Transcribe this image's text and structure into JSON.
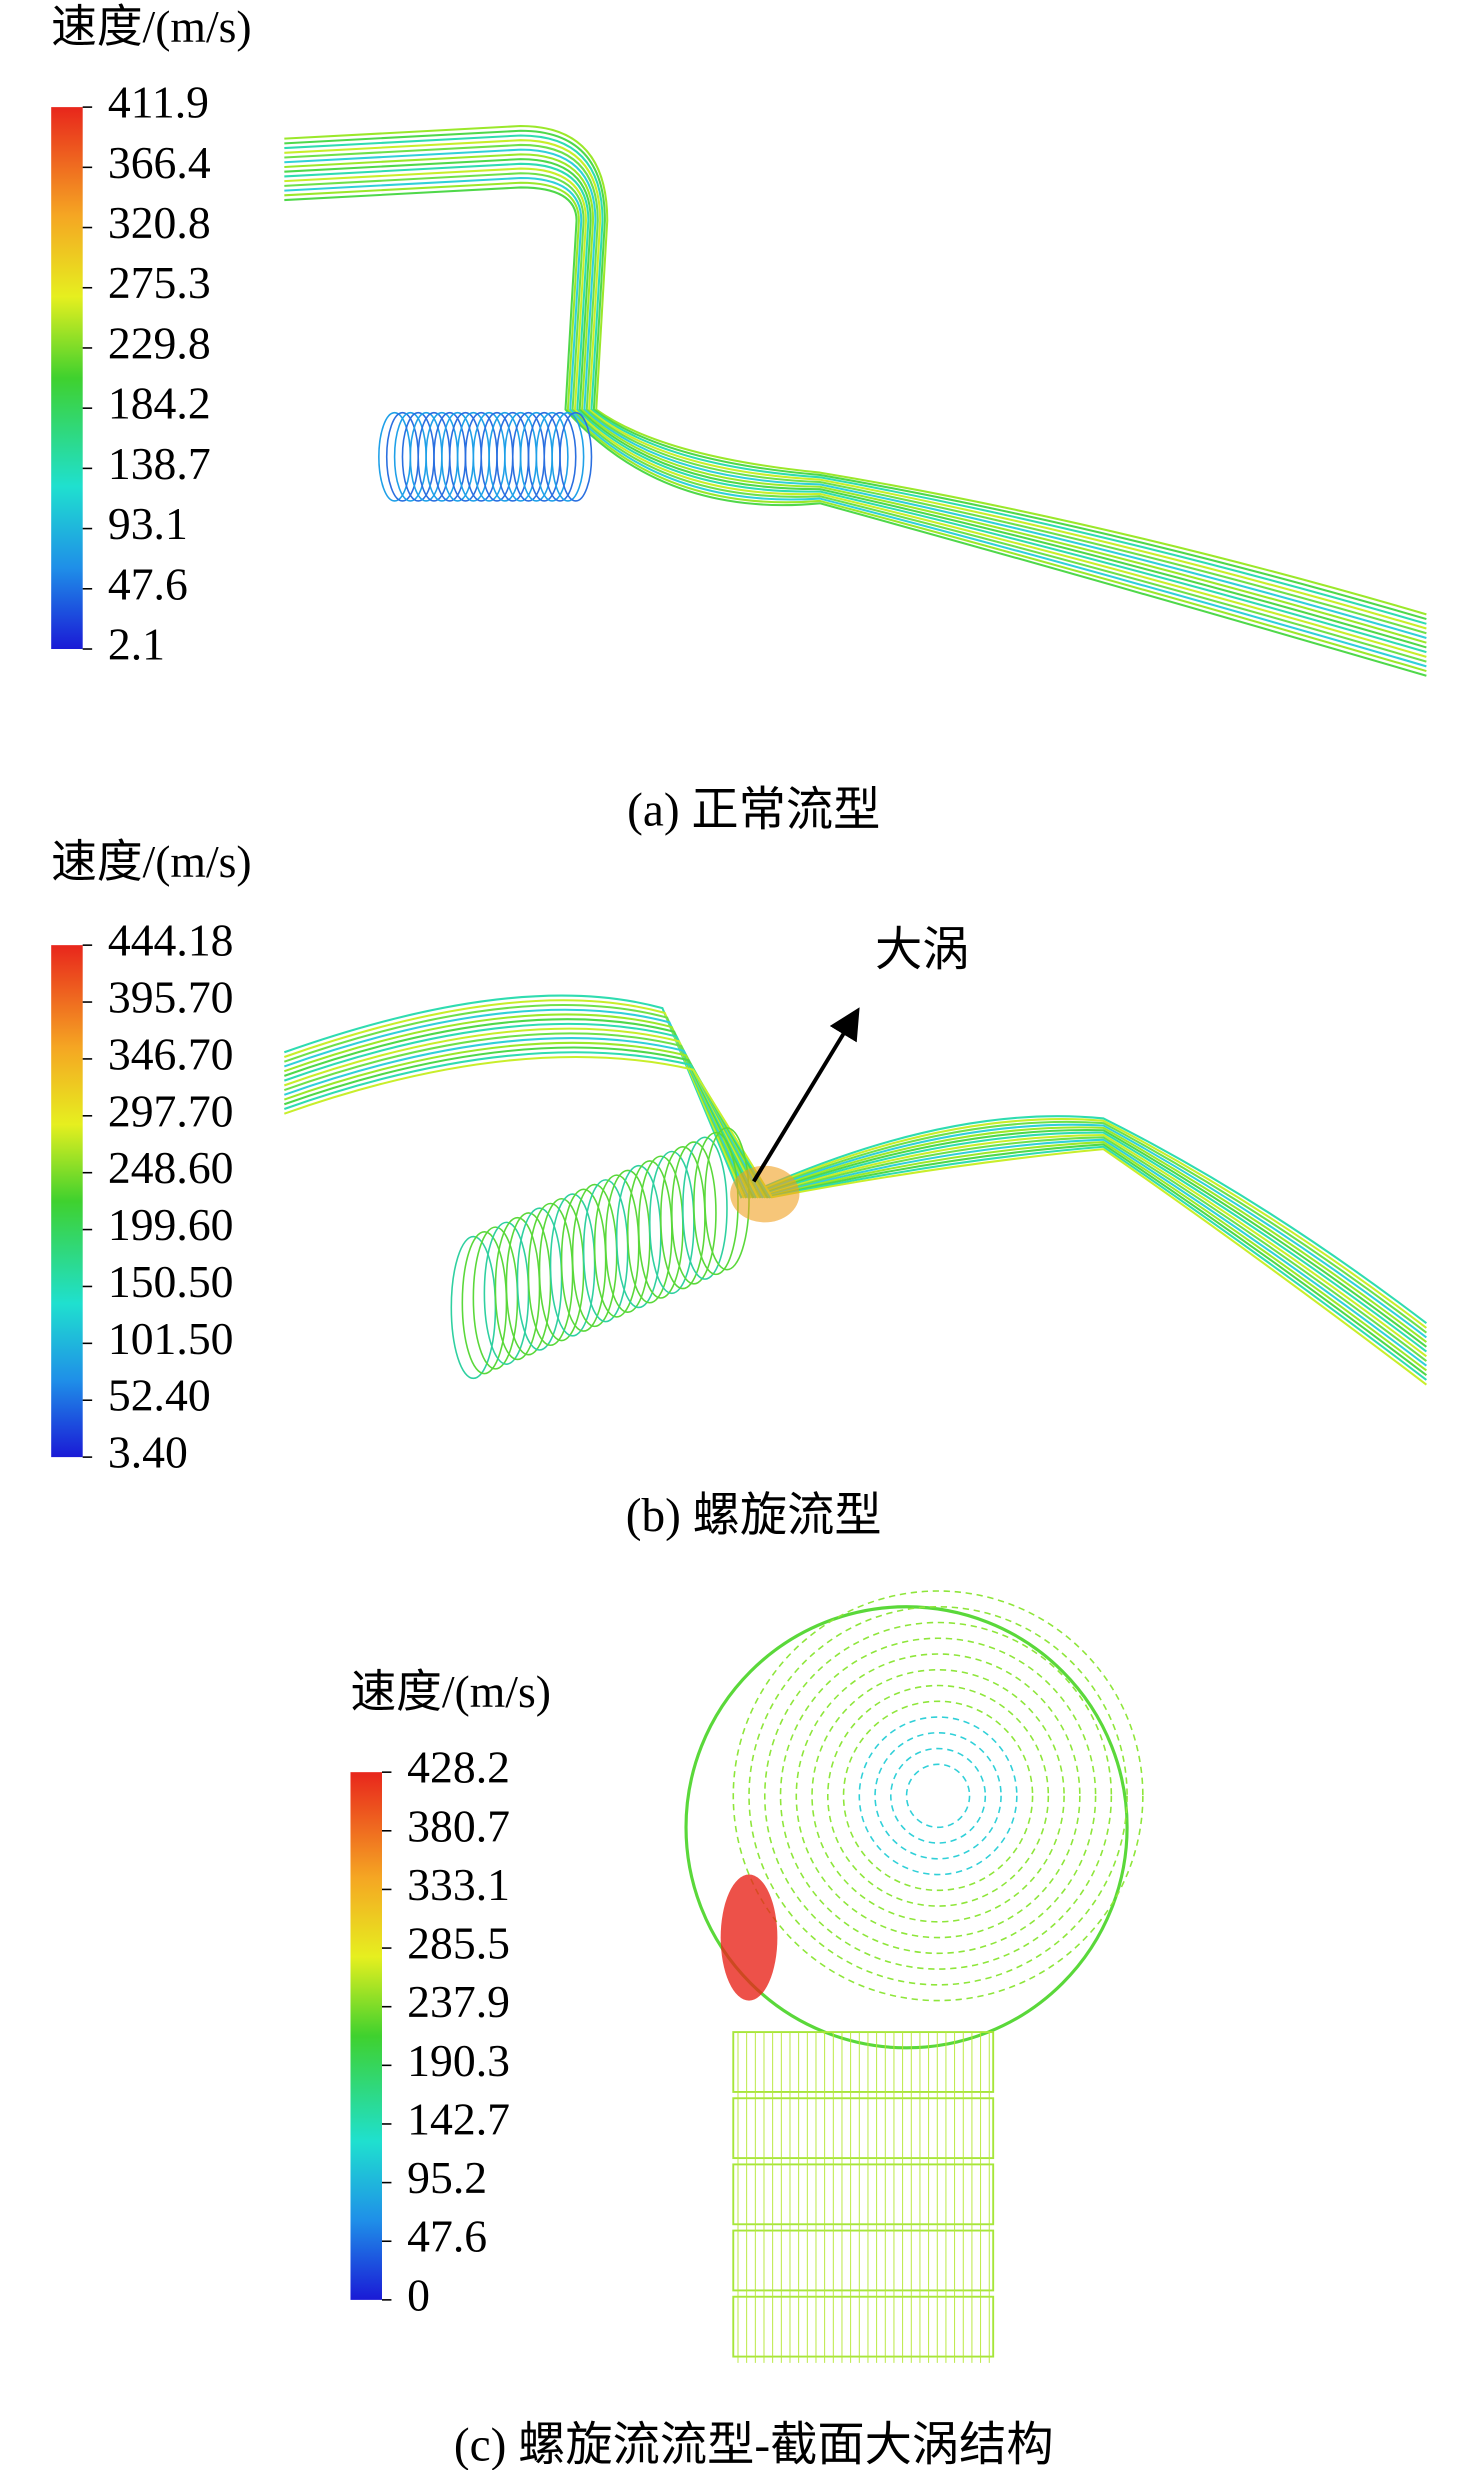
{
  "panels": [
    {
      "colorbar": {
        "title": "速度/(m/s)",
        "labels": [
          "411.9",
          "366.4",
          "320.8",
          "275.3",
          "229.8",
          "184.2",
          "138.7",
          "93.1",
          "47.6",
          "2.1"
        ]
      },
      "caption": "(a) 正常流型"
    },
    {
      "colorbar": {
        "title": "速度/(m/s)",
        "labels": [
          "444.18",
          "395.70",
          "346.70",
          "297.70",
          "248.60",
          "199.60",
          "150.50",
          "101.50",
          "52.40",
          "3.40"
        ]
      },
      "caption": "(b) 螺旋流型",
      "annotation": "大涡"
    },
    {
      "colorbar": {
        "title": "速度/(m/s)",
        "labels": [
          "428.2",
          "380.7",
          "333.1",
          "285.5",
          "237.9",
          "190.3",
          "142.7",
          "95.2",
          "47.6",
          "0"
        ]
      },
      "caption": "(c) 螺旋流流型-截面大涡结构"
    }
  ]
}
